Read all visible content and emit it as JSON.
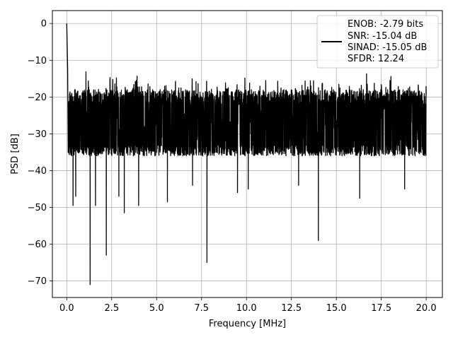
{
  "chart_data": {
    "type": "line",
    "title": "",
    "xlabel": "Frequency [MHz]",
    "ylabel": "PSD [dB]",
    "xlim": [
      -0.8,
      20.9
    ],
    "ylim": [
      -74.5,
      3.5
    ],
    "grid": true,
    "legend_position": "top-right",
    "xticks": [
      0.0,
      2.5,
      5.0,
      7.5,
      10.0,
      12.5,
      15.0,
      17.5,
      20.0
    ],
    "xtick_labels": [
      "0.0",
      "2.5",
      "5.0",
      "7.5",
      "10.0",
      "12.5",
      "15.0",
      "17.5",
      "20.0"
    ],
    "yticks": [
      0,
      -10,
      -20,
      -30,
      -40,
      -50,
      -60,
      -70
    ],
    "ytick_labels": [
      "0",
      "−10",
      "−20",
      "−30",
      "−40",
      "−50",
      "−60",
      "−70"
    ],
    "legend_lines": [
      "ENOB: -2.79 bits",
      "SNR: -15.04 dB",
      "SINAD: -15.05 dB",
      "SFDR: 12.24"
    ],
    "series": [
      {
        "color": "#000000",
        "x_range": [
          0.0,
          20.0
        ],
        "noise_envelope": {
          "upper_approx": -18,
          "upper_peak_approx": -13,
          "lower_approx": -36,
          "typical_mid": -27
        },
        "peaks": [
          {
            "x": 0.0,
            "y": 0.0
          },
          {
            "x": 0.05,
            "y": -12.5
          }
        ],
        "spurs": [
          {
            "x": 0.35,
            "y": -49.5
          },
          {
            "x": 0.5,
            "y": -47.0
          },
          {
            "x": 1.3,
            "y": -71.0
          },
          {
            "x": 1.6,
            "y": -49.5
          },
          {
            "x": 2.2,
            "y": -63.0
          },
          {
            "x": 2.9,
            "y": -47.0
          },
          {
            "x": 3.2,
            "y": -51.5
          },
          {
            "x": 4.0,
            "y": -49.5
          },
          {
            "x": 5.6,
            "y": -48.5
          },
          {
            "x": 7.0,
            "y": -44.0
          },
          {
            "x": 7.8,
            "y": -65.0
          },
          {
            "x": 9.5,
            "y": -46.0
          },
          {
            "x": 10.1,
            "y": -45.0
          },
          {
            "x": 12.9,
            "y": -44.0
          },
          {
            "x": 14.0,
            "y": -59.0
          },
          {
            "x": 16.3,
            "y": -47.5
          },
          {
            "x": 18.8,
            "y": -45.0
          }
        ]
      }
    ]
  }
}
